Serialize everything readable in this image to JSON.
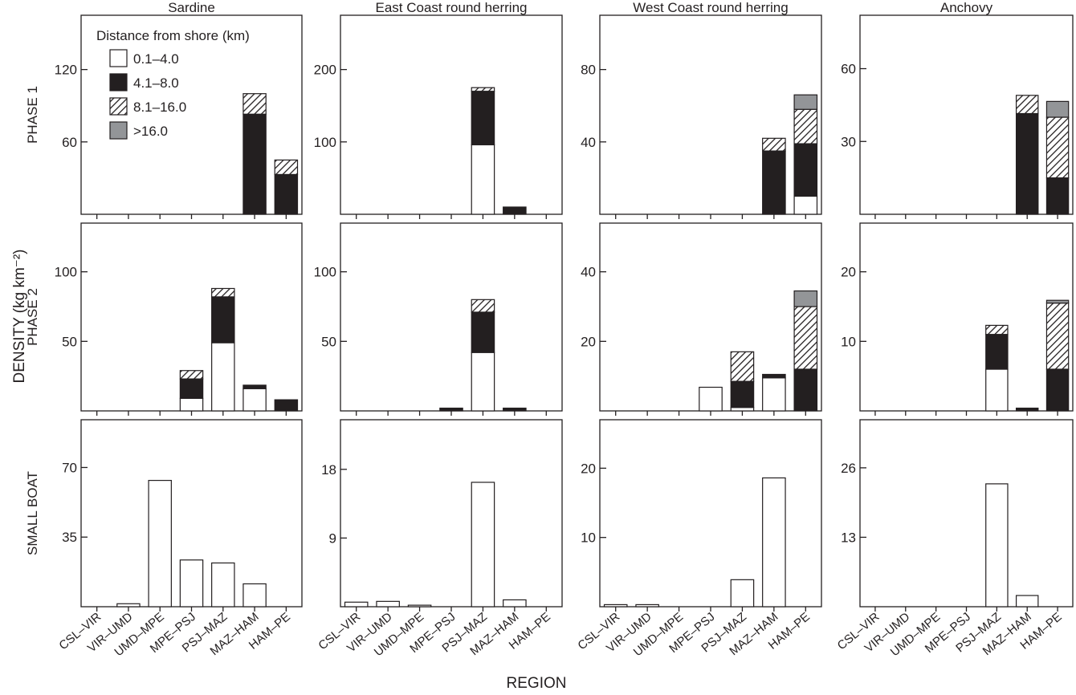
{
  "xlabel": "REGION",
  "ylabel": "DENSITY (kg km⁻²)",
  "row_labels": [
    "PHASE 1",
    "PHASE 2",
    "SMALL BOAT"
  ],
  "col_titles": [
    "Sardine",
    "East Coast round herring",
    "West Coast round herring",
    "Anchovy"
  ],
  "legend": {
    "title": "Distance from shore (km)",
    "items": [
      {
        "label": "0.1–4.0",
        "fill": "#ffffff"
      },
      {
        "label": "4.1–8.0",
        "fill": "#231f20"
      },
      {
        "label": "8.1–16.0",
        "fill": "hatch"
      },
      {
        "label": ">16.0",
        "fill": "#939598"
      }
    ]
  },
  "colors": {
    "axis": "#231f20",
    "dark": "#231f20",
    "grey": "#939598",
    "background": "#ffffff"
  },
  "chart_data": [
    {
      "type": "bar",
      "stacked": true,
      "title": "Sardine",
      "row": "PHASE 1",
      "categories": [
        "CSL–VIR",
        "VIR–UMD",
        "UMD–MPE",
        "MPE–PSJ",
        "PSJ–MAZ",
        "MAZ–HAM",
        "HAM–PE"
      ],
      "ylim": [
        0,
        165
      ],
      "yticks": [
        60,
        120
      ],
      "series": [
        {
          "name": "0.1–4.0",
          "values": [
            0,
            0,
            0,
            0,
            0,
            0,
            0
          ]
        },
        {
          "name": "4.1–8.0",
          "values": [
            0,
            0,
            0,
            0,
            0,
            83,
            33
          ]
        },
        {
          "name": "8.1–16.0",
          "values": [
            0,
            0,
            0,
            0,
            0,
            17,
            12
          ]
        },
        {
          "name": ">16.0",
          "values": [
            0,
            0,
            0,
            0,
            0,
            0,
            0
          ]
        }
      ]
    },
    {
      "type": "bar",
      "stacked": true,
      "title": "East Coast round herring",
      "row": "PHASE 1",
      "categories": [
        "CSL–VIR",
        "VIR–UMD",
        "UMD–MPE",
        "MPE–PSJ",
        "PSJ–MAZ",
        "MAZ–HAM",
        "HAM–PE"
      ],
      "ylim": [
        0,
        275
      ],
      "yticks": [
        100,
        200
      ],
      "series": [
        {
          "name": "0.1–4.0",
          "values": [
            0,
            0,
            0,
            0,
            96,
            0,
            0
          ]
        },
        {
          "name": "4.1–8.0",
          "values": [
            0,
            0,
            0,
            0,
            74,
            10,
            0
          ]
        },
        {
          "name": "8.1–16.0",
          "values": [
            0,
            0,
            0,
            0,
            5,
            0,
            0
          ]
        },
        {
          "name": ">16.0",
          "values": [
            0,
            0,
            0,
            0,
            0,
            0,
            0
          ]
        }
      ]
    },
    {
      "type": "bar",
      "stacked": true,
      "title": "West Coast round herring",
      "row": "PHASE 1",
      "categories": [
        "CSL–VIR",
        "VIR–UMD",
        "UMD–MPE",
        "MPE–PSJ",
        "PSJ–MAZ",
        "MAZ–HAM",
        "HAM–PE"
      ],
      "ylim": [
        0,
        110
      ],
      "yticks": [
        40,
        80
      ],
      "series": [
        {
          "name": "0.1–4.0",
          "values": [
            0,
            0,
            0,
            0,
            0,
            0,
            10
          ]
        },
        {
          "name": "4.1–8.0",
          "values": [
            0,
            0,
            0,
            0,
            0,
            35,
            29
          ]
        },
        {
          "name": "8.1–16.0",
          "values": [
            0,
            0,
            0,
            0,
            0,
            7,
            19
          ]
        },
        {
          "name": ">16.0",
          "values": [
            0,
            0,
            0,
            0,
            0,
            0,
            8
          ]
        }
      ]
    },
    {
      "type": "bar",
      "stacked": true,
      "title": "Anchovy",
      "row": "PHASE 1",
      "categories": [
        "CSL–VIR",
        "VIR–UMD",
        "UMD–MPE",
        "MPE–PSJ",
        "PSJ–MAZ",
        "MAZ–HAM",
        "HAM–PE"
      ],
      "ylim": [
        0,
        82
      ],
      "yticks": [
        30,
        60
      ],
      "series": [
        {
          "name": "0.1–4.0",
          "values": [
            0,
            0,
            0,
            0,
            0,
            0,
            0
          ]
        },
        {
          "name": "4.1–8.0",
          "values": [
            0,
            0,
            0,
            0,
            0,
            41.5,
            15
          ]
        },
        {
          "name": "8.1–16.0",
          "values": [
            0,
            0,
            0,
            0,
            0,
            7.5,
            25
          ]
        },
        {
          "name": ">16.0",
          "values": [
            0,
            0,
            0,
            0,
            0,
            0,
            6.5
          ]
        }
      ]
    },
    {
      "type": "bar",
      "stacked": true,
      "title": "Sardine",
      "row": "PHASE 2",
      "categories": [
        "CSL–VIR",
        "VIR–UMD",
        "UMD–MPE",
        "MPE–PSJ",
        "PSJ–MAZ",
        "MAZ–HAM",
        "HAM–PE"
      ],
      "ylim": [
        0,
        135
      ],
      "yticks": [
        50,
        100
      ],
      "series": [
        {
          "name": "0.1–4.0",
          "values": [
            0,
            0,
            0,
            9,
            49,
            16,
            0
          ]
        },
        {
          "name": "4.1–8.0",
          "values": [
            0,
            0,
            0,
            14,
            33,
            2.5,
            8
          ]
        },
        {
          "name": "8.1–16.0",
          "values": [
            0,
            0,
            0,
            6,
            6,
            0,
            0
          ]
        },
        {
          "name": ">16.0",
          "values": [
            0,
            0,
            0,
            0,
            0,
            0,
            0
          ]
        }
      ]
    },
    {
      "type": "bar",
      "stacked": true,
      "title": "East Coast round herring",
      "row": "PHASE 2",
      "categories": [
        "CSL–VIR",
        "VIR–UMD",
        "UMD–MPE",
        "MPE–PSJ",
        "PSJ–MAZ",
        "MAZ–HAM",
        "HAM–PE"
      ],
      "ylim": [
        0,
        135
      ],
      "yticks": [
        50,
        100
      ],
      "series": [
        {
          "name": "0.1–4.0",
          "values": [
            0,
            0,
            0,
            0,
            42,
            0,
            0
          ]
        },
        {
          "name": "4.1–8.0",
          "values": [
            0,
            0,
            0,
            2,
            29,
            2,
            0
          ]
        },
        {
          "name": "8.1–16.0",
          "values": [
            0,
            0,
            0,
            0,
            9,
            0,
            0
          ]
        },
        {
          "name": ">16.0",
          "values": [
            0,
            0,
            0,
            0,
            0,
            0,
            0
          ]
        }
      ]
    },
    {
      "type": "bar",
      "stacked": true,
      "title": "West Coast round herring",
      "row": "PHASE 2",
      "categories": [
        "CSL–VIR",
        "VIR–UMD",
        "UMD–MPE",
        "MPE–PSJ",
        "PSJ–MAZ",
        "MAZ–HAM",
        "HAM–PE"
      ],
      "ylim": [
        0,
        54
      ],
      "yticks": [
        20,
        40
      ],
      "series": [
        {
          "name": "0.1–4.0",
          "values": [
            0,
            0,
            0,
            6.8,
            1,
            9.5,
            0
          ]
        },
        {
          "name": "4.1–8.0",
          "values": [
            0,
            0,
            0,
            0,
            7.5,
            1,
            12
          ]
        },
        {
          "name": "8.1–16.0",
          "values": [
            0,
            0,
            0,
            0,
            8.5,
            0,
            18
          ]
        },
        {
          "name": ">16.0",
          "values": [
            0,
            0,
            0,
            0,
            0,
            0,
            4.5
          ]
        }
      ]
    },
    {
      "type": "bar",
      "stacked": true,
      "title": "Anchovy",
      "row": "PHASE 2",
      "categories": [
        "CSL–VIR",
        "VIR–UMD",
        "UMD–MPE",
        "MPE–PSJ",
        "PSJ–MAZ",
        "MAZ–HAM",
        "HAM–PE"
      ],
      "ylim": [
        0,
        27
      ],
      "yticks": [
        10,
        20
      ],
      "series": [
        {
          "name": "0.1–4.0",
          "values": [
            0,
            0,
            0,
            0,
            6,
            0,
            0
          ]
        },
        {
          "name": "4.1–8.0",
          "values": [
            0,
            0,
            0,
            0,
            5,
            0.4,
            6
          ]
        },
        {
          "name": "8.1–16.0",
          "values": [
            0,
            0,
            0,
            0,
            1.3,
            0,
            9.5
          ]
        },
        {
          "name": ">16.0",
          "values": [
            0,
            0,
            0,
            0,
            0,
            0,
            0.4
          ]
        }
      ]
    },
    {
      "type": "bar",
      "title": "Sardine",
      "row": "SMALL BOAT",
      "categories": [
        "CSL–VIR",
        "VIR–UMD",
        "UMD–MPE",
        "MPE–PSJ",
        "PSJ–MAZ",
        "MAZ–HAM",
        "HAM–PE"
      ],
      "ylim": [
        0,
        94
      ],
      "yticks": [
        35,
        70
      ],
      "values": [
        0,
        1.5,
        63.5,
        23.5,
        22,
        11.5,
        0
      ]
    },
    {
      "type": "bar",
      "title": "East Coast round herring",
      "row": "SMALL BOAT",
      "categories": [
        "CSL–VIR",
        "VIR–UMD",
        "UMD–MPE",
        "MPE–PSJ",
        "PSJ–MAZ",
        "MAZ–HAM",
        "HAM–PE"
      ],
      "ylim": [
        0,
        24.5
      ],
      "yticks": [
        9,
        18
      ],
      "values": [
        0.6,
        0.7,
        0.2,
        0,
        16.3,
        0.9,
        0
      ]
    },
    {
      "type": "bar",
      "title": "West Coast round herring",
      "row": "SMALL BOAT",
      "categories": [
        "CSL–VIR",
        "VIR–UMD",
        "UMD–MPE",
        "MPE–PSJ",
        "PSJ–MAZ",
        "MAZ–HAM",
        "HAM–PE"
      ],
      "ylim": [
        0,
        27
      ],
      "yticks": [
        10,
        20
      ],
      "values": [
        0.3,
        0.3,
        0,
        0,
        3.9,
        18.6,
        0
      ]
    },
    {
      "type": "bar",
      "title": "Anchovy",
      "row": "SMALL BOAT",
      "categories": [
        "CSL–VIR",
        "VIR–UMD",
        "UMD–MPE",
        "MPE–PSJ",
        "PSJ–MAZ",
        "MAZ–HAM",
        "HAM–PE"
      ],
      "ylim": [
        0,
        35
      ],
      "yticks": [
        13,
        26
      ],
      "values": [
        0,
        0,
        0,
        0,
        23,
        2.1,
        0
      ]
    }
  ]
}
